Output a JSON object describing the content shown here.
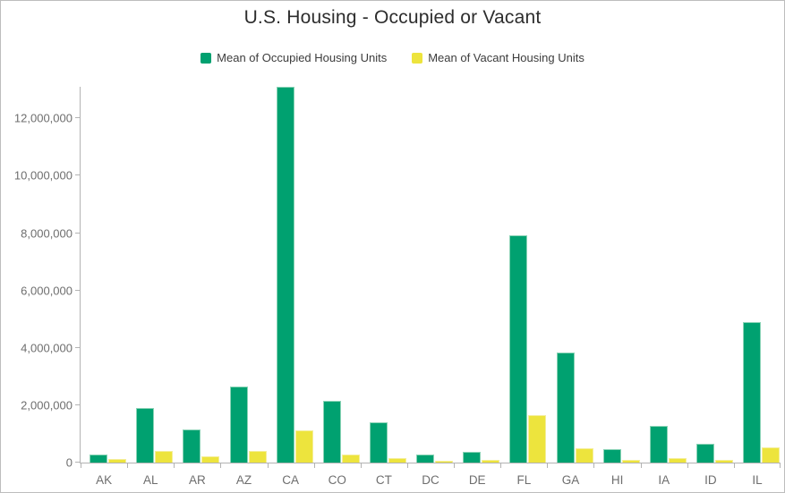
{
  "title": "U.S. Housing - Occupied or Vacant",
  "legend": [
    {
      "label": "Mean of Occupied Housing Units",
      "color": "#00a170"
    },
    {
      "label": "Mean of Vacant Housing Units",
      "color": "#ede43d"
    }
  ],
  "colors": {
    "occupied": "#00a170",
    "occupied_stroke": "#8ad3b6",
    "vacant": "#ede43d",
    "vacant_stroke": "#f4ee9a",
    "axis": "#b3b3b3",
    "axis_label": "#6e6e6e",
    "title_text": "#2d2d2d",
    "border": "#bdbdbd"
  },
  "chart_data": {
    "type": "bar",
    "title": "U.S. Housing - Occupied or Vacant",
    "xlabel": "",
    "ylabel": "",
    "grid": false,
    "legend_position": "top",
    "categories": [
      "AK",
      "AL",
      "AR",
      "AZ",
      "CA",
      "CO",
      "CT",
      "DC",
      "DE",
      "FL",
      "GA",
      "HI",
      "IA",
      "ID",
      "IL"
    ],
    "series": [
      {
        "name": "Mean of Occupied Housing Units",
        "color": "#00a170",
        "values": [
          270000,
          1900000,
          1170000,
          2650000,
          13090000,
          2140000,
          1390000,
          290000,
          380000,
          7930000,
          3850000,
          460000,
          1270000,
          670000,
          4900000
        ]
      },
      {
        "name": "Mean of Vacant Housing Units",
        "color": "#ede43d",
        "values": [
          110000,
          420000,
          210000,
          410000,
          1130000,
          270000,
          150000,
          50000,
          90000,
          1640000,
          490000,
          90000,
          160000,
          90000,
          520000
        ]
      }
    ],
    "ylim": [
      0,
      13100000
    ],
    "yticks": [
      0,
      2000000,
      4000000,
      6000000,
      8000000,
      10000000,
      12000000
    ],
    "ytick_labels": [
      "0",
      "2,000,000",
      "4,000,000",
      "6,000,000",
      "8,000,000",
      "10,000,000",
      "12,000,000"
    ]
  }
}
